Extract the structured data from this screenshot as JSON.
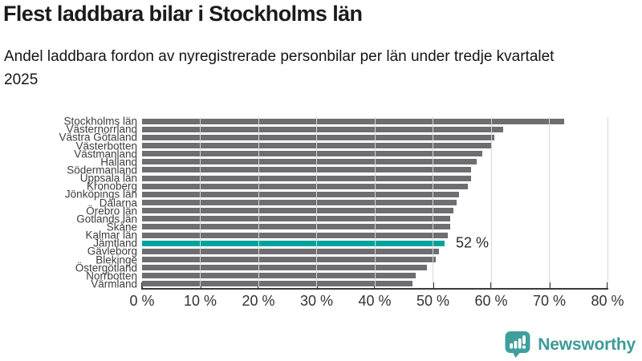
{
  "header": {
    "title": "Flest laddbara bilar i Stockholms län",
    "subtitle": "Andel laddbara fordon av nyregistrerade personbilar per län under tredje kvartalet 2025"
  },
  "chart_data": {
    "type": "bar",
    "orientation": "horizontal",
    "title": "Flest laddbara bilar i Stockholms län",
    "xlabel": "",
    "ylabel": "",
    "unit": "%",
    "xlim": [
      0,
      80
    ],
    "grid": true,
    "x_ticks": [
      "0 %",
      "10 %",
      "20 %",
      "30 %",
      "40 %",
      "50 %",
      "60 %",
      "70 %",
      "80 %"
    ],
    "categories": [
      "Stockholms län",
      "Västernorrland",
      "Västra Götaland",
      "Västerbotten",
      "Västmanland",
      "Halland",
      "Södermanland",
      "Uppsala län",
      "Kronoberg",
      "Jönköpings län",
      "Dalarna",
      "Örebro län",
      "Gotlands län",
      "Skåne",
      "Kalmar län",
      "Jämtland",
      "Gävleborg",
      "Blekinge",
      "Östergötland",
      "Norrbotten",
      "Värmland"
    ],
    "values": [
      72.5,
      62,
      60.5,
      60,
      58.5,
      57.5,
      56.5,
      56.5,
      56,
      54.5,
      54,
      53.5,
      53,
      53,
      52.5,
      52,
      51,
      50.5,
      49,
      47,
      46.5
    ],
    "bar_color": "#6d6d72",
    "gridline_color": "#d8d8d8",
    "axis_color": "#3a3a3a",
    "highlight": {
      "category": "Jämtland",
      "value": 52,
      "label": "52 %",
      "color": "#00a39c"
    }
  },
  "footer": {
    "brand": "Newsworthy",
    "brand_color": "#3d9b97",
    "logo_icon": "newsworthy-speech-bubble-bar-chart-icon"
  }
}
